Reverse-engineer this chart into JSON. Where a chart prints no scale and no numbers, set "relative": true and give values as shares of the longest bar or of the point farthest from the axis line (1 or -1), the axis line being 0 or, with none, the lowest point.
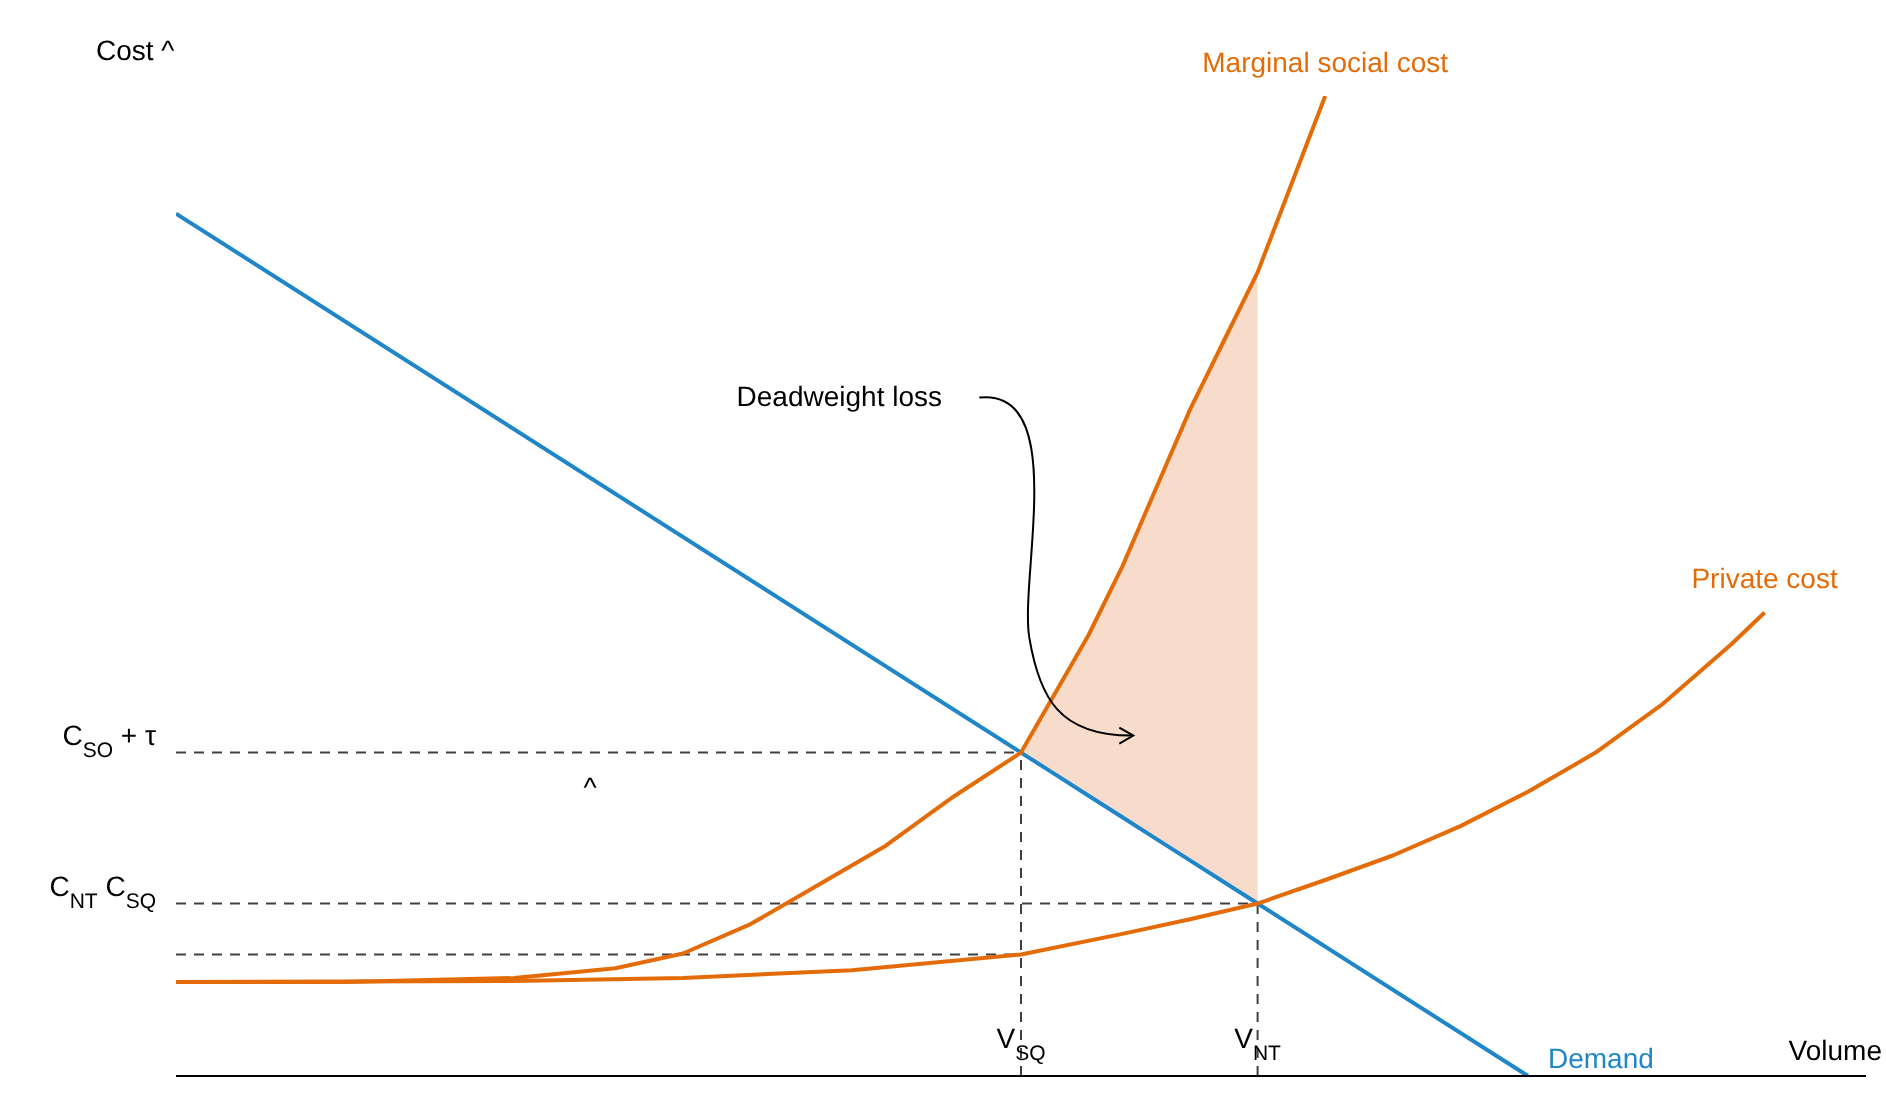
{
  "chart_data": {
    "type": "line",
    "relative": true,
    "xlabel": "Volume",
    "ylabel": "Cost ^",
    "tick_labels": "x",
    "marker": "none",
    "categories": [
      null,
      null,
      null,
      null,
      null,
      null,
      null,
      null,
      null,
      null,
      null,
      null,
      null,
      null,
      null,
      null,
      null,
      null,
      null,
      null,
      null,
      null,
      null,
      null,
      null,
      "V$_{SQ}$",
      null,
      null,
      null,
      null,
      null,
      null,
      "V$_{NT}$",
      null,
      null,
      null,
      null,
      null,
      null,
      null,
      null,
      null,
      null,
      null,
      null,
      null,
      null,
      null,
      null,
      null,
      null
    ],
    "series": [
      {
        "name": "Demand",
        "color": "#1f86c8",
        "values": [
          0.88,
          null,
          null,
          null,
          null,
          null,
          null,
          null,
          null,
          null,
          null,
          null,
          null,
          null,
          null,
          null,
          null,
          null,
          null,
          null,
          null,
          null,
          null,
          null,
          null,
          0.33,
          0.308,
          0.286,
          0.264,
          0.242,
          0.22,
          0.198,
          0.176,
          null,
          null,
          null,
          null,
          null,
          null,
          null,
          0,
          null,
          null,
          null,
          null,
          null,
          null,
          null,
          null,
          null,
          null
        ]
      },
      {
        "name": "Marginal social cost",
        "color": "#e36c09",
        "values": [
          0.096,
          null,
          null,
          null,
          null,
          0.096,
          null,
          null,
          null,
          null,
          0.1,
          null,
          null,
          0.11,
          null,
          0.125,
          null,
          0.155,
          null,
          0.195,
          null,
          0.235,
          null,
          0.285,
          null,
          0.33,
          0.39,
          0.45,
          0.52,
          0.6,
          0.68,
          0.75,
          0.82,
          0.91,
          1,
          null,
          null,
          null,
          null,
          null,
          null,
          null,
          null,
          null,
          null,
          null,
          null,
          null,
          null,
          null,
          null
        ]
      },
      {
        "name": "Private cost",
        "color": "#e36c09",
        "values": [
          0.096,
          null,
          null,
          null,
          null,
          null,
          null,
          null,
          null,
          null,
          0.097,
          null,
          null,
          null,
          null,
          0.1,
          null,
          null,
          null,
          null,
          0.108,
          null,
          null,
          null,
          null,
          0.124,
          null,
          null,
          0.145,
          null,
          0.16,
          null,
          0.176,
          null,
          0.2,
          null,
          0.225,
          null,
          0.255,
          null,
          0.29,
          null,
          0.33,
          null,
          0.38,
          null,
          0.44,
          0.473,
          null,
          null,
          null
        ]
      },
      {
        "type": "area",
        "color": "#f8dccb",
        "values": [
          null,
          null,
          null,
          null,
          null,
          null,
          null,
          null,
          null,
          null,
          null,
          null,
          null,
          null,
          null,
          null,
          null,
          null,
          null,
          null,
          null,
          null,
          null,
          null,
          null,
          0.33,
          0.39,
          0.45,
          0.52,
          0.6,
          0.68,
          0.75,
          0.82,
          null,
          null,
          null,
          null,
          null,
          null,
          null,
          null,
          null,
          null,
          null,
          null,
          null,
          null,
          null,
          null,
          null,
          null
        ]
      }
    ],
    "ref_lines": [
      {
        "axis": "y",
        "value": 0.33,
        "label": "C$_{SO}$ + τ",
        "color": "#404040",
        "line_style": "dashed"
      },
      {
        "axis": "y",
        "value": 0.176,
        "label": "C$_{NT}$  C$_{SQ}$",
        "color": "#404040",
        "line_style": "dashed"
      },
      {
        "axis": "y",
        "value": 0.124,
        "color": "#404040",
        "line_style": "dashed"
      },
      {
        "axis": "x",
        "value": "V$_{SQ}$",
        "color": "#404040",
        "line_style": "dashed"
      },
      {
        "axis": "x",
        "value": "V$_{NT}$",
        "color": "#404040",
        "line_style": "dashed"
      }
    ],
    "annotations": [
      "Deadweight loss",
      "^"
    ]
  }
}
